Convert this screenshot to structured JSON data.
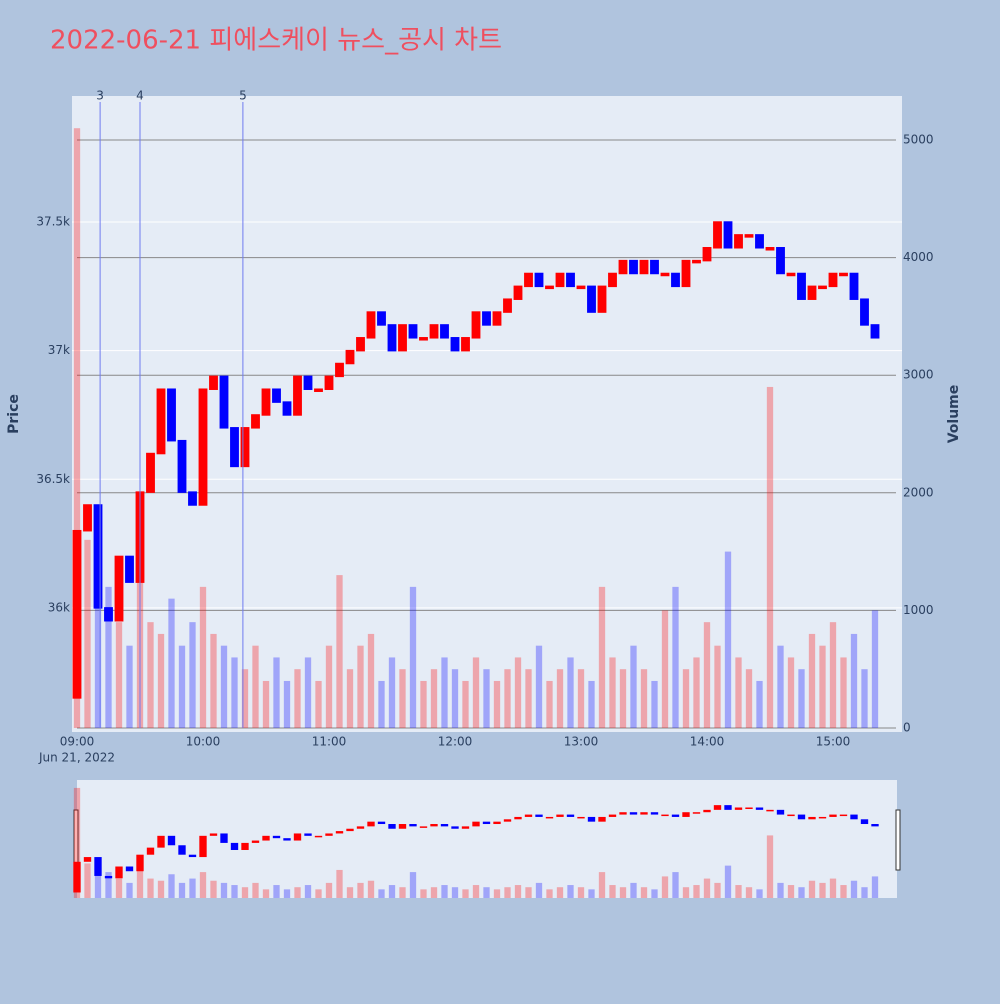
{
  "chart_data": {
    "type": "candlestick",
    "title": "2022-06-21 피에스케이 뉴스_공시 차트",
    "y_title": "Price",
    "y2_title": "Volume",
    "x_subtitle": "Jun 21, 2022",
    "increasing_color": "#ff0000",
    "decreasing_color": "#0000ff",
    "x": [
      "09:00",
      "09:05",
      "09:10",
      "09:15",
      "09:20",
      "09:25",
      "09:30",
      "09:35",
      "09:40",
      "09:45",
      "09:50",
      "09:55",
      "10:00",
      "10:05",
      "10:10",
      "10:15",
      "10:20",
      "10:25",
      "10:30",
      "10:35",
      "10:40",
      "10:45",
      "10:50",
      "10:55",
      "11:00",
      "11:05",
      "11:10",
      "11:15",
      "11:20",
      "11:25",
      "11:30",
      "11:35",
      "11:40",
      "11:45",
      "11:50",
      "11:55",
      "12:00",
      "12:05",
      "12:10",
      "12:15",
      "12:20",
      "12:25",
      "12:30",
      "12:35",
      "12:40",
      "12:45",
      "12:50",
      "12:55",
      "13:00",
      "13:05",
      "13:10",
      "13:15",
      "13:20",
      "13:25",
      "13:30",
      "13:35",
      "13:40",
      "13:45",
      "13:50",
      "13:55",
      "14:00",
      "14:05",
      "14:10",
      "14:15",
      "14:20",
      "14:25",
      "14:30",
      "14:35",
      "14:40",
      "14:45",
      "14:50",
      "14:55",
      "15:00",
      "15:05",
      "15:10",
      "15:15",
      "15:20"
    ],
    "open": [
      35650,
      36300,
      36400,
      36000,
      35950,
      36200,
      36100,
      36450,
      36600,
      36850,
      36650,
      36450,
      36400,
      36850,
      36900,
      36700,
      36550,
      36700,
      36750,
      36850,
      36800,
      36750,
      36900,
      36850,
      36850,
      36900,
      36950,
      37000,
      37050,
      37150,
      37100,
      37000,
      37100,
      37050,
      37050,
      37100,
      37050,
      37000,
      37050,
      37150,
      37100,
      37150,
      37200,
      37250,
      37300,
      37250,
      37250,
      37300,
      37250,
      37250,
      37150,
      37250,
      37300,
      37350,
      37300,
      37350,
      37300,
      37300,
      37250,
      37350,
      37350,
      37400,
      37500,
      37400,
      37450,
      37450,
      37400,
      37400,
      37300,
      37300,
      37200,
      37250,
      37250,
      37300,
      37300,
      37200,
      37100
    ],
    "close": [
      36300,
      36400,
      36000,
      35950,
      36200,
      36100,
      36450,
      36600,
      36850,
      36650,
      36450,
      36400,
      36850,
      36900,
      36700,
      36550,
      36700,
      36750,
      36850,
      36800,
      36750,
      36900,
      36850,
      36850,
      36900,
      36950,
      37000,
      37050,
      37150,
      37100,
      37000,
      37100,
      37050,
      37050,
      37100,
      37050,
      37000,
      37050,
      37150,
      37100,
      37150,
      37200,
      37250,
      37300,
      37250,
      37250,
      37300,
      37250,
      37250,
      37150,
      37250,
      37300,
      37350,
      37300,
      37350,
      37300,
      37300,
      37250,
      37350,
      37350,
      37400,
      37500,
      37400,
      37450,
      37450,
      37400,
      37400,
      37300,
      37300,
      37200,
      37250,
      37250,
      37300,
      37300,
      37200,
      37100,
      37050
    ],
    "volume": [
      5100,
      1600,
      1800,
      1200,
      900,
      700,
      2000,
      900,
      800,
      1100,
      700,
      900,
      1200,
      800,
      700,
      600,
      500,
      700,
      400,
      600,
      400,
      500,
      600,
      400,
      700,
      1300,
      500,
      700,
      800,
      400,
      600,
      500,
      1200,
      400,
      500,
      600,
      500,
      400,
      600,
      500,
      400,
      500,
      600,
      500,
      700,
      400,
      500,
      600,
      500,
      400,
      1200,
      600,
      500,
      700,
      500,
      400,
      1000,
      1200,
      500,
      600,
      900,
      700,
      1500,
      600,
      500,
      400,
      2900,
      700,
      600,
      500,
      800,
      700,
      900,
      600,
      800,
      500,
      1000
    ],
    "events": [
      {
        "x": "09:11",
        "label": "3"
      },
      {
        "x": "09:30",
        "label": "4"
      },
      {
        "x": "10:19",
        "label": "5"
      }
    ],
    "xlim": [
      "09:00",
      "15:30"
    ],
    "xticks": [
      "09:00",
      "10:00",
      "11:00",
      "12:00",
      "13:00",
      "14:00",
      "15:00"
    ],
    "ylim": [
      35533,
      37990
    ],
    "yticks": [
      {
        "value": 36000,
        "label": "36k"
      },
      {
        "value": 36500,
        "label": "36.5k"
      },
      {
        "value": 37000,
        "label": "37k"
      },
      {
        "value": 37500,
        "label": "37.5k"
      }
    ],
    "y2lim": [
      0,
      5374
    ],
    "y2ticks": [
      0,
      1000,
      2000,
      3000,
      4000,
      5000
    ]
  }
}
